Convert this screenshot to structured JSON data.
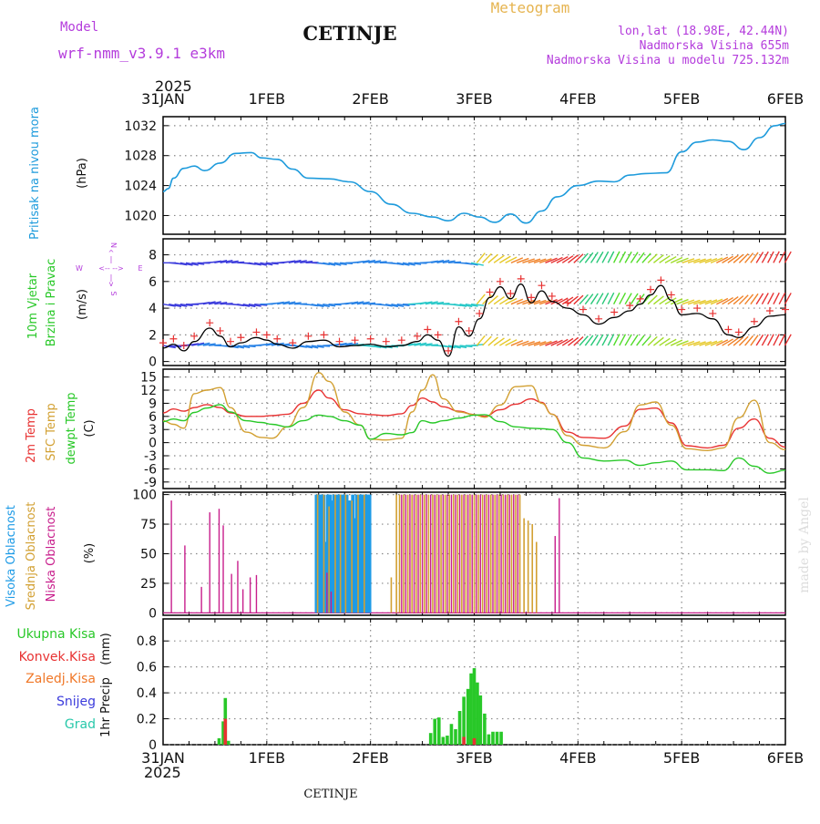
{
  "header": {
    "model_label": "Model",
    "model_name": "wrf-nmm_v3.9.1  e3km",
    "station": "CETINJE",
    "product": "Meteogram",
    "lonlat": "lon,lat (18.98E, 42.44N)",
    "altitude": "Nadmorska Visina 655m",
    "model_altitude": "Nadmorska Visina u modelu 725.132m",
    "footer_station": "CETINJE",
    "credit": "made by Angel"
  },
  "time_axis": {
    "year": "2025",
    "ticks": [
      "31JAN",
      "1FEB",
      "2FEB",
      "3FEB",
      "4FEB",
      "5FEB",
      "6FEB"
    ]
  },
  "colors": {
    "pressure": "#1e9bdc",
    "temp2m": "#e83232",
    "sfc": "#d2a032",
    "dew": "#28c828",
    "high_cloud": "#1e9be6",
    "mid_cloud": "#d2a032",
    "low_cloud": "#c81e8c",
    "precip_total": "#28c828",
    "precip_conv": "#e83232",
    "precip_frozen": "#f07828",
    "snow": "#3c3cdc",
    "graupel": "#28c8aa",
    "wind_label": "#28c828",
    "compass": "#b43cdc",
    "grid": "#888888"
  },
  "chart_data": [
    {
      "type": "line",
      "name": "pressure",
      "ylabel_name": "Pritisak na nivou mora",
      "ylabel_unit": "(hPa)",
      "yticks": [
        "1032",
        "1028",
        "1024",
        "1020"
      ],
      "ytick_values": [
        1032,
        1028,
        1024,
        1020
      ],
      "ylim": [
        1017.5,
        1033.2
      ],
      "x_days": [
        0,
        0.05,
        0.1,
        0.2,
        0.3,
        0.4,
        0.55,
        0.7,
        0.85,
        0.95,
        1.1,
        1.25,
        1.4,
        1.6,
        1.8,
        2.0,
        2.2,
        2.4,
        2.6,
        2.75,
        2.9,
        3.05,
        3.2,
        3.35,
        3.5,
        3.65,
        3.8,
        4.0,
        4.2,
        4.35,
        4.5,
        4.65,
        4.85,
        5.0,
        5.15,
        5.3,
        5.45,
        5.6,
        5.75,
        5.9,
        6.0
      ],
      "values": [
        1023.2,
        1023.6,
        1025.0,
        1026.3,
        1026.6,
        1026.0,
        1027.0,
        1028.3,
        1028.4,
        1027.7,
        1027.5,
        1026.2,
        1025.0,
        1024.9,
        1024.5,
        1023.2,
        1021.5,
        1020.3,
        1019.8,
        1019.3,
        1020.3,
        1019.8,
        1019.1,
        1020.2,
        1019.0,
        1020.6,
        1022.5,
        1024.0,
        1024.6,
        1024.5,
        1025.4,
        1025.6,
        1025.7,
        1028.5,
        1029.8,
        1030.1,
        1029.9,
        1028.8,
        1030.4,
        1032.0,
        1032.3
      ]
    },
    {
      "type": "line",
      "name": "wind",
      "ylabel_name1": "10m Vjetar",
      "ylabel_name2": "Brzina i Pravac",
      "ylabel_unit": "(m/s)",
      "compass": [
        "N",
        "^",
        "|",
        "<-- -->",
        "W",
        "E",
        "|",
        "v",
        "S"
      ],
      "yticks": [
        "8",
        "6",
        "4",
        "2",
        "0"
      ],
      "ytick_values": [
        8,
        6,
        4,
        2,
        0
      ],
      "ylim": [
        -0.3,
        9.2
      ],
      "x_days": [
        0,
        0.1,
        0.2,
        0.3,
        0.45,
        0.55,
        0.65,
        0.75,
        0.9,
        1.0,
        1.1,
        1.25,
        1.4,
        1.55,
        1.7,
        1.85,
        2.0,
        2.15,
        2.3,
        2.45,
        2.55,
        2.65,
        2.75,
        2.85,
        2.95,
        3.05,
        3.15,
        3.25,
        3.35,
        3.45,
        3.55,
        3.65,
        3.75,
        3.9,
        4.05,
        4.2,
        4.35,
        4.5,
        4.6,
        4.7,
        4.8,
        4.9,
        5.0,
        5.15,
        5.3,
        5.45,
        5.55,
        5.7,
        5.85,
        6.0
      ],
      "values": [
        1.0,
        1.3,
        0.8,
        1.5,
        2.5,
        1.9,
        1.1,
        1.4,
        1.8,
        1.6,
        1.3,
        1.0,
        1.5,
        1.6,
        1.1,
        1.2,
        1.3,
        1.1,
        1.2,
        1.5,
        2.0,
        1.6,
        0.4,
        2.6,
        1.9,
        3.2,
        4.8,
        5.6,
        4.7,
        5.8,
        4.4,
        5.3,
        4.5,
        4.0,
        3.5,
        2.8,
        3.3,
        3.8,
        4.3,
        5.0,
        5.7,
        4.6,
        3.5,
        3.6,
        3.2,
        2.0,
        1.8,
        2.6,
        3.4,
        3.5
      ]
    },
    {
      "type": "line",
      "name": "temperature",
      "ylabel_name1": "2m Temp",
      "ylabel_name2": "SFC Temp",
      "ylabel_name3": "dewpt Temp",
      "ylabel_unit": "(C)",
      "yticks": [
        "15",
        "12",
        "9",
        "6",
        "3",
        "0",
        "-3",
        "-6",
        "-9"
      ],
      "ytick_values": [
        15,
        12,
        9,
        6,
        3,
        0,
        -3,
        -6,
        -9
      ],
      "ylim": [
        -10.5,
        16.8
      ],
      "x_days": [
        0,
        0.1,
        0.2,
        0.3,
        0.42,
        0.55,
        0.65,
        0.8,
        0.95,
        1.05,
        1.2,
        1.35,
        1.5,
        1.6,
        1.75,
        1.9,
        2.0,
        2.15,
        2.3,
        2.4,
        2.5,
        2.6,
        2.7,
        2.85,
        3.0,
        3.1,
        3.25,
        3.4,
        3.55,
        3.65,
        3.75,
        3.9,
        4.05,
        4.25,
        4.45,
        4.6,
        4.75,
        4.9,
        5.05,
        5.25,
        5.4,
        5.55,
        5.7,
        5.85,
        6.0
      ],
      "series": [
        {
          "name": "2m Temp",
          "values": [
            6.8,
            7.7,
            7.2,
            8.0,
            8.7,
            8.0,
            6.8,
            6.0,
            6.0,
            6.2,
            6.5,
            9.0,
            12.0,
            10.2,
            7.5,
            6.6,
            6.4,
            6.2,
            6.6,
            8.5,
            10.2,
            9.3,
            8.2,
            7.2,
            6.4,
            6.0,
            7.5,
            8.8,
            10.0,
            9.2,
            6.5,
            2.4,
            1.2,
            1.0,
            3.8,
            7.6,
            7.9,
            4.5,
            -0.7,
            -1.2,
            -0.6,
            3.3,
            5.4,
            1.0,
            -1.0
          ]
        },
        {
          "name": "SFC Temp",
          "values": [
            5.0,
            4.2,
            3.3,
            11.2,
            12.0,
            12.6,
            8.0,
            2.4,
            1.2,
            1.0,
            3.6,
            8.0,
            16.0,
            14.0,
            7.0,
            4.0,
            0.8,
            0.6,
            1.0,
            7.0,
            12.0,
            15.5,
            10.0,
            7.0,
            6.4,
            5.8,
            8.6,
            12.8,
            13.0,
            9.0,
            6.5,
            1.6,
            -0.6,
            -1.2,
            2.5,
            8.6,
            9.3,
            4.0,
            -1.4,
            -1.8,
            -1.2,
            5.7,
            9.7,
            0.0,
            -1.6
          ]
        },
        {
          "name": "dewpt Temp",
          "values": [
            4.8,
            5.4,
            5.0,
            6.9,
            7.9,
            8.7,
            7.0,
            5.0,
            4.6,
            4.2,
            3.6,
            5.0,
            6.3,
            6.0,
            5.0,
            4.0,
            0.8,
            2.1,
            1.8,
            2.3,
            5.0,
            4.5,
            5.0,
            5.6,
            6.3,
            6.4,
            4.8,
            3.6,
            3.3,
            3.2,
            3.0,
            0.0,
            -3.5,
            -4.2,
            -4.0,
            -5.2,
            -4.6,
            -4.2,
            -6.2,
            -6.2,
            -6.4,
            -3.5,
            -5.4,
            -7.0,
            -6.3
          ]
        }
      ]
    },
    {
      "type": "bar",
      "name": "cloud_cover",
      "ylabel_name1": "Visoka Oblacnost",
      "ylabel_name2": "Srednja Oblacnost",
      "ylabel_name3": "Niska Oblacnost",
      "ylabel_unit": "(%)",
      "yticks": [
        "100",
        "75",
        "50",
        "25",
        "0"
      ],
      "ytick_values": [
        100,
        75,
        50,
        25,
        0
      ],
      "ylim": [
        -2,
        102
      ],
      "series": [
        {
          "name": "Visoka Oblacnost",
          "x_days": [
            1.48,
            1.51,
            1.53,
            1.55,
            1.57,
            1.59,
            1.61,
            1.63,
            1.65,
            1.67,
            1.69,
            1.71,
            1.73,
            1.75,
            1.77,
            1.79,
            1.81,
            1.83,
            1.85,
            1.87,
            1.89,
            1.91,
            1.93,
            1.95,
            1.97,
            1.99
          ],
          "values": [
            100,
            100,
            100,
            100,
            60,
            100,
            100,
            95,
            100,
            100,
            100,
            100,
            100,
            100,
            100,
            95,
            95,
            100,
            80,
            100,
            100,
            100,
            100,
            100,
            100,
            100
          ]
        },
        {
          "name": "Srednja Oblacnost",
          "x_days": [
            1.49,
            1.55,
            1.6,
            1.66,
            1.71,
            1.76,
            1.82,
            1.88,
            1.94,
            2.2,
            2.25,
            2.28,
            2.32,
            2.36,
            2.4,
            2.44,
            2.48,
            2.52,
            2.56,
            2.6,
            2.64,
            2.68,
            2.72,
            2.76,
            2.8,
            2.84,
            2.88,
            2.92,
            2.96,
            3.0,
            3.04,
            3.08,
            3.12,
            3.16,
            3.2,
            3.24,
            3.28,
            3.32,
            3.36,
            3.4,
            3.44,
            3.48,
            3.52,
            3.56,
            3.6
          ],
          "values": [
            100,
            100,
            90,
            100,
            100,
            100,
            95,
            100,
            100,
            30,
            100,
            100,
            100,
            100,
            100,
            100,
            100,
            100,
            100,
            100,
            100,
            100,
            100,
            100,
            100,
            100,
            100,
            100,
            100,
            100,
            100,
            100,
            100,
            100,
            100,
            100,
            100,
            100,
            100,
            100,
            100,
            80,
            78,
            75,
            60
          ]
        },
        {
          "name": "Niska Oblacnost",
          "x_days": [
            0.08,
            0.21,
            0.37,
            0.45,
            0.54,
            0.58,
            0.66,
            0.72,
            0.77,
            0.84,
            0.9,
            1.58,
            1.62,
            2.3,
            2.34,
            2.38,
            2.42,
            2.46,
            2.5,
            2.54,
            2.58,
            2.62,
            2.66,
            2.7,
            2.74,
            2.78,
            2.82,
            2.86,
            2.9,
            2.94,
            2.98,
            3.02,
            3.06,
            3.1,
            3.14,
            3.18,
            3.22,
            3.26,
            3.3,
            3.34,
            3.38,
            3.42,
            3.78,
            3.82
          ],
          "values": [
            95,
            57,
            22,
            85,
            88,
            74,
            33,
            44,
            20,
            30,
            32,
            34,
            18,
            100,
            100,
            100,
            100,
            100,
            100,
            100,
            100,
            100,
            100,
            100,
            100,
            100,
            100,
            100,
            100,
            100,
            100,
            100,
            100,
            100,
            100,
            100,
            100,
            100,
            100,
            100,
            100,
            100,
            65,
            97
          ]
        }
      ]
    },
    {
      "type": "bar",
      "name": "precipitation",
      "ylabel_name1": "1hr Precip",
      "ylabel_unit": "(mm)",
      "legend": [
        "Ukupna Kisa",
        "Konvek.Kisa",
        "Zaledj.Kisa",
        "Snijeg",
        "Grad"
      ],
      "yticks": [
        "0.8",
        "0.6",
        "0.4",
        "0.2",
        "0"
      ],
      "ytick_values": [
        0.8,
        0.6,
        0.4,
        0.2,
        0
      ],
      "ylim": [
        0,
        0.97
      ],
      "series": [
        {
          "name": "Ukupna Kisa",
          "x_days": [
            0.54,
            0.58,
            0.6,
            0.63,
            2.58,
            2.62,
            2.66,
            2.7,
            2.74,
            2.78,
            2.82,
            2.86,
            2.9,
            2.94,
            2.97,
            3.0,
            3.03,
            3.06,
            3.1,
            3.14,
            3.18,
            3.22,
            3.26
          ],
          "values": [
            0.05,
            0.18,
            0.36,
            0.03,
            0.09,
            0.2,
            0.21,
            0.06,
            0.07,
            0.16,
            0.12,
            0.26,
            0.37,
            0.43,
            0.55,
            0.59,
            0.48,
            0.38,
            0.24,
            0.08,
            0.1,
            0.1,
            0.1
          ]
        },
        {
          "name": "Konvek.Kisa",
          "x_days": [
            0.6,
            2.9,
            3.0
          ],
          "values": [
            0.2,
            0.06,
            0.05
          ]
        }
      ]
    }
  ]
}
